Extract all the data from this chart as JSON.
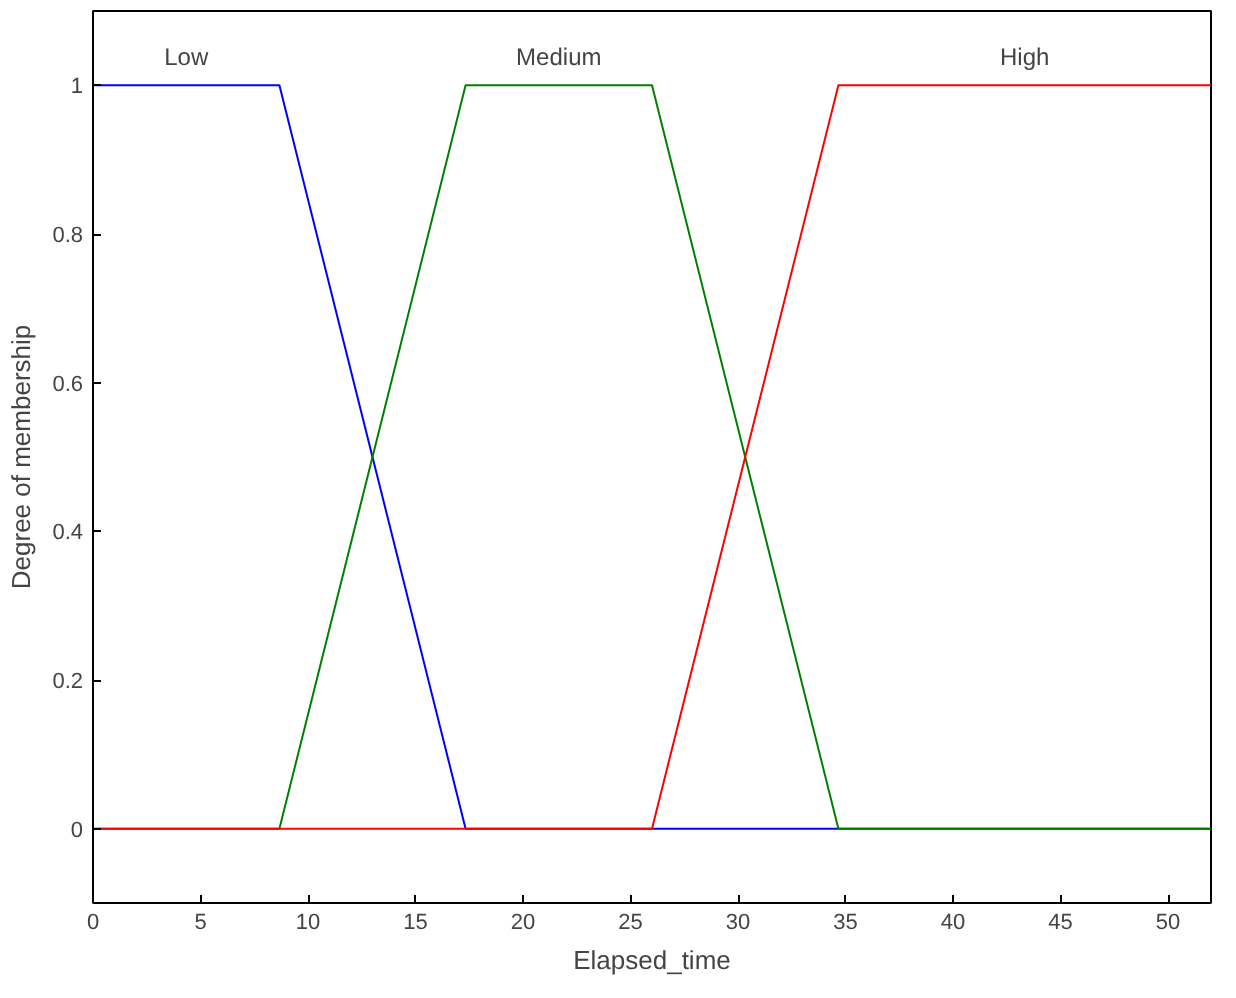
{
  "chart_data": {
    "type": "line",
    "xlabel": "Elapsed_time",
    "ylabel": "Degree of membership",
    "xlim": [
      0,
      52
    ],
    "ylim": [
      -0.1,
      1.1
    ],
    "xticks": [
      0,
      5,
      10,
      15,
      20,
      25,
      30,
      35,
      40,
      45,
      50
    ],
    "yticks": [
      0,
      0.2,
      0.4,
      0.6,
      0.8,
      1
    ],
    "grid": false,
    "marker": "none",
    "line_style": "solid",
    "series": [
      {
        "name": "Low",
        "color": "#0000ff",
        "x": [
          0,
          8.67,
          17.33,
          52
        ],
        "values": [
          1,
          1,
          0,
          0
        ]
      },
      {
        "name": "Medium",
        "color": "#008000",
        "x": [
          0,
          8.67,
          17.33,
          26,
          34.67,
          52
        ],
        "values": [
          0,
          0,
          1,
          1,
          0,
          0
        ]
      },
      {
        "name": "High",
        "color": "#ff0000",
        "x": [
          0,
          26,
          34.67,
          52
        ],
        "values": [
          0,
          0,
          1,
          1
        ]
      }
    ]
  }
}
